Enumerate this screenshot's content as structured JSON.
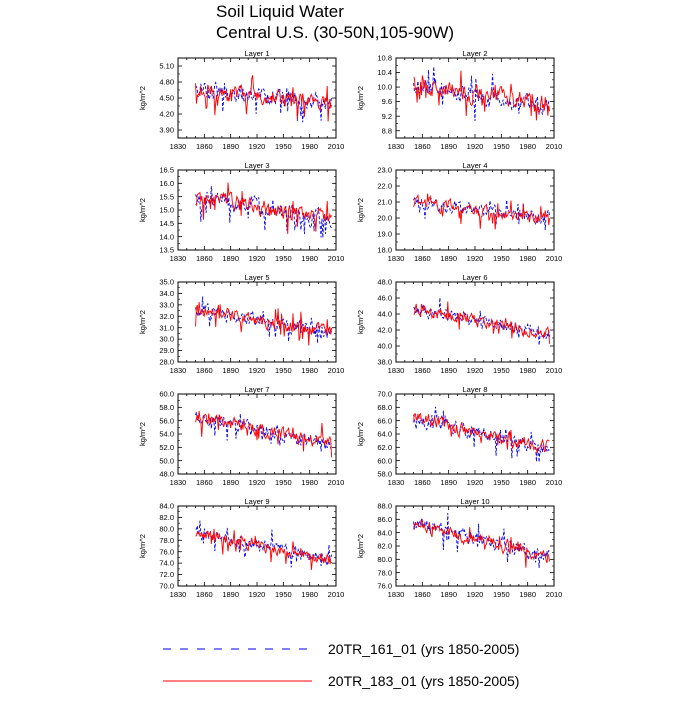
{
  "title": {
    "line1": "Soil Liquid Water",
    "line2": "Central U.S. (30-50N,105-90W)"
  },
  "colors": {
    "series_161": "#0000ee",
    "series_183": "#ff0000",
    "axis": "#000000"
  },
  "legend": {
    "items": [
      {
        "label": "20TR_161_01 (yrs 1850-2005)",
        "color": "#0000ee",
        "style": "dashed"
      },
      {
        "label": "20TR_183_01 (yrs 1850-2005)",
        "color": "#ff0000",
        "style": "solid"
      }
    ]
  },
  "chart_data": [
    {
      "type": "line",
      "title": "Layer 1",
      "ylabel": "kg/m^2",
      "xlim": [
        1830,
        2010
      ],
      "xticks": [
        "1830",
        "1860",
        "1890",
        "1920",
        "1950",
        "1980",
        "2010"
      ],
      "ylim": [
        3.75,
        5.25
      ],
      "yticks": [
        "3.90",
        "4.20",
        "4.50",
        "4.80",
        "5.10"
      ],
      "ytick_values": [
        3.9,
        4.2,
        4.5,
        4.8,
        5.1
      ],
      "x_range": [
        1850,
        2005
      ],
      "mean_start": 4.65,
      "mean_end": 4.4,
      "amplitude": 0.22,
      "series": [
        {
          "name": "20TR_161_01",
          "style": "dashed"
        },
        {
          "name": "20TR_183_01",
          "style": "solid"
        }
      ]
    },
    {
      "type": "line",
      "title": "Layer 2",
      "ylabel": "kg/m^2",
      "xlim": [
        1830,
        2010
      ],
      "xticks": [
        "1830",
        "1860",
        "1890",
        "1920",
        "1950",
        "1980",
        "2010"
      ],
      "ylim": [
        8.6,
        10.8
      ],
      "yticks": [
        "8.8",
        "9.2",
        "9.6",
        "10.0",
        "10.4",
        "10.8"
      ],
      "ytick_values": [
        8.8,
        9.2,
        9.6,
        10.0,
        10.4,
        10.8
      ],
      "x_range": [
        1850,
        2005
      ],
      "mean_start": 10.05,
      "mean_end": 9.5,
      "amplitude": 0.35,
      "series": [
        {
          "name": "20TR_161_01",
          "style": "dashed"
        },
        {
          "name": "20TR_183_01",
          "style": "solid"
        }
      ]
    },
    {
      "type": "line",
      "title": "Layer 3",
      "ylabel": "kg/m^2",
      "xlim": [
        1830,
        2010
      ],
      "xticks": [
        "1830",
        "1860",
        "1890",
        "1920",
        "1950",
        "1980",
        "2010"
      ],
      "ylim": [
        13.5,
        16.5
      ],
      "yticks": [
        "13.5",
        "14.0",
        "14.5",
        "15.0",
        "15.5",
        "16.0",
        "16.5"
      ],
      "ytick_values": [
        13.5,
        14.0,
        14.5,
        15.0,
        15.5,
        16.0,
        16.5
      ],
      "x_range": [
        1850,
        2005
      ],
      "mean_start": 15.5,
      "mean_end": 14.6,
      "amplitude": 0.45,
      "series": [
        {
          "name": "20TR_161_01",
          "style": "dashed"
        },
        {
          "name": "20TR_183_01",
          "style": "solid"
        }
      ]
    },
    {
      "type": "line",
      "title": "Layer 4",
      "ylabel": "kg/m^2",
      "xlim": [
        1830,
        2010
      ],
      "xticks": [
        "1830",
        "1860",
        "1890",
        "1920",
        "1950",
        "1980",
        "2010"
      ],
      "ylim": [
        18.0,
        23.0
      ],
      "yticks": [
        "18.0",
        "19.0",
        "20.0",
        "21.0",
        "22.0",
        "23.0"
      ],
      "ytick_values": [
        18,
        19,
        20,
        21,
        22,
        23
      ],
      "x_range": [
        1850,
        2005
      ],
      "mean_start": 21.0,
      "mean_end": 19.9,
      "amplitude": 0.55,
      "series": [
        {
          "name": "20TR_161_01",
          "style": "dashed"
        },
        {
          "name": "20TR_183_01",
          "style": "solid"
        }
      ]
    },
    {
      "type": "line",
      "title": "Layer 5",
      "ylabel": "kg/m^2",
      "xlim": [
        1830,
        2010
      ],
      "xticks": [
        "1830",
        "1860",
        "1890",
        "1920",
        "1950",
        "1980",
        "2010"
      ],
      "ylim": [
        28.0,
        35.0
      ],
      "yticks": [
        "28.0",
        "29.0",
        "30.0",
        "31.0",
        "32.0",
        "33.0",
        "34.0",
        "35.0"
      ],
      "ytick_values": [
        28,
        29,
        30,
        31,
        32,
        33,
        34,
        35
      ],
      "x_range": [
        1850,
        2005
      ],
      "mean_start": 32.6,
      "mean_end": 30.6,
      "amplitude": 0.8,
      "series": [
        {
          "name": "20TR_161_01",
          "style": "dashed"
        },
        {
          "name": "20TR_183_01",
          "style": "solid"
        }
      ]
    },
    {
      "type": "line",
      "title": "Layer 6",
      "ylabel": "kg/m^2",
      "xlim": [
        1830,
        2010
      ],
      "xticks": [
        "1830",
        "1860",
        "1890",
        "1920",
        "1950",
        "1980",
        "2010"
      ],
      "ylim": [
        38.0,
        48.0
      ],
      "yticks": [
        "38.0",
        "40.0",
        "42.0",
        "44.0",
        "46.0",
        "48.0"
      ],
      "ytick_values": [
        38,
        40,
        42,
        44,
        46,
        48
      ],
      "x_range": [
        1850,
        2005
      ],
      "mean_start": 44.6,
      "mean_end": 41.5,
      "amplitude": 1.1,
      "series": [
        {
          "name": "20TR_161_01",
          "style": "dashed"
        },
        {
          "name": "20TR_183_01",
          "style": "solid"
        }
      ]
    },
    {
      "type": "line",
      "title": "Layer 7",
      "ylabel": "kg/m^2",
      "xlim": [
        1830,
        2010
      ],
      "xticks": [
        "1830",
        "1860",
        "1890",
        "1920",
        "1950",
        "1980",
        "2010"
      ],
      "ylim": [
        48.0,
        60.0
      ],
      "yticks": [
        "48.0",
        "50.0",
        "52.0",
        "54.0",
        "56.0",
        "58.0",
        "60.0"
      ],
      "ytick_values": [
        48,
        50,
        52,
        54,
        56,
        58,
        60
      ],
      "x_range": [
        1850,
        2005
      ],
      "mean_start": 56.5,
      "mean_end": 52.5,
      "amplitude": 1.4,
      "series": [
        {
          "name": "20TR_161_01",
          "style": "dashed"
        },
        {
          "name": "20TR_183_01",
          "style": "solid"
        }
      ]
    },
    {
      "type": "line",
      "title": "Layer 8",
      "ylabel": "kg/m^2",
      "xlim": [
        1830,
        2010
      ],
      "xticks": [
        "1830",
        "1860",
        "1890",
        "1920",
        "1950",
        "1980",
        "2010"
      ],
      "ylim": [
        58.0,
        70.0
      ],
      "yticks": [
        "58.0",
        "60.0",
        "62.0",
        "64.0",
        "66.0",
        "68.0",
        "70.0"
      ],
      "ytick_values": [
        58,
        60,
        62,
        64,
        66,
        68,
        70
      ],
      "x_range": [
        1850,
        2005
      ],
      "mean_start": 66.5,
      "mean_end": 61.8,
      "amplitude": 1.5,
      "series": [
        {
          "name": "20TR_161_01",
          "style": "dashed"
        },
        {
          "name": "20TR_183_01",
          "style": "solid"
        }
      ]
    },
    {
      "type": "line",
      "title": "Layer 9",
      "ylabel": "kg/m^2",
      "xlim": [
        1830,
        2010
      ],
      "xticks": [
        "1830",
        "1860",
        "1890",
        "1920",
        "1950",
        "1980",
        "2010"
      ],
      "ylim": [
        70.0,
        84.0
      ],
      "yticks": [
        "70.0",
        "72.0",
        "74.0",
        "76.0",
        "78.0",
        "80.0",
        "82.0",
        "84.0"
      ],
      "ytick_values": [
        70,
        72,
        74,
        76,
        78,
        80,
        82,
        84
      ],
      "x_range": [
        1850,
        2005
      ],
      "mean_start": 79.5,
      "mean_end": 74.5,
      "amplitude": 1.6,
      "series": [
        {
          "name": "20TR_161_01",
          "style": "dashed"
        },
        {
          "name": "20TR_183_01",
          "style": "solid"
        }
      ]
    },
    {
      "type": "line",
      "title": "Layer 10",
      "ylabel": "kg/m^2",
      "xlim": [
        1830,
        2010
      ],
      "xticks": [
        "1830",
        "1860",
        "1890",
        "1920",
        "1950",
        "1980",
        "2010"
      ],
      "ylim": [
        76.0,
        88.0
      ],
      "yticks": [
        "76.0",
        "78.0",
        "80.0",
        "82.0",
        "84.0",
        "86.0",
        "88.0"
      ],
      "ytick_values": [
        76,
        78,
        80,
        82,
        84,
        86,
        88
      ],
      "x_range": [
        1850,
        2005
      ],
      "mean_start": 85.2,
      "mean_end": 80.5,
      "amplitude": 1.5,
      "series": [
        {
          "name": "20TR_161_01",
          "style": "dashed"
        },
        {
          "name": "20TR_183_01",
          "style": "solid"
        }
      ]
    }
  ]
}
